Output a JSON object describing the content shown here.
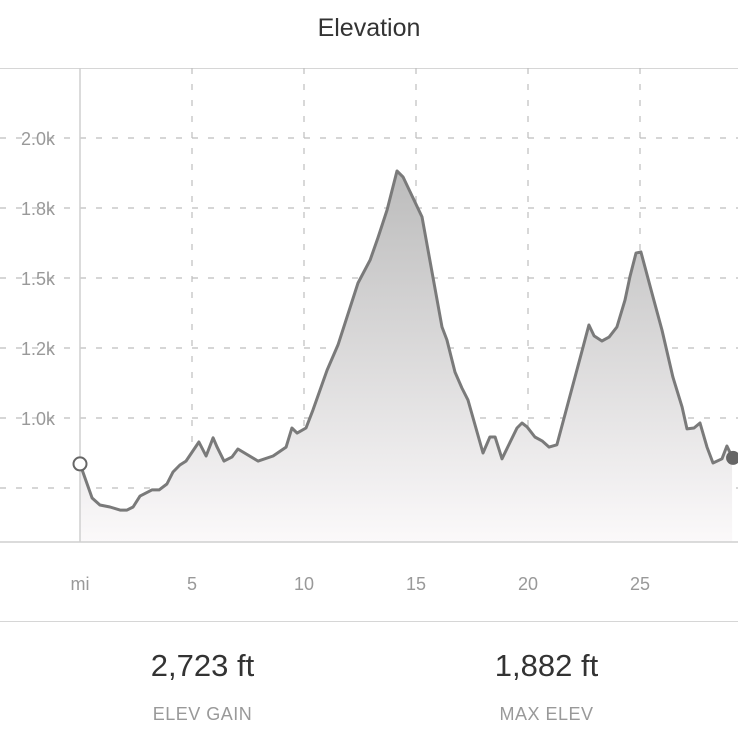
{
  "header": {
    "title": "Elevation"
  },
  "chart_data": {
    "type": "area",
    "title": "Elevation",
    "x_unit_label": "mi",
    "xlim": [
      0,
      29.4
    ],
    "ylim": [
      557,
      2250
    ],
    "x_ticks": [
      {
        "value": 5,
        "label": "5"
      },
      {
        "value": 10,
        "label": "10"
      },
      {
        "value": 15,
        "label": "15"
      },
      {
        "value": 20,
        "label": "20"
      },
      {
        "value": 25,
        "label": "25"
      }
    ],
    "y_ticks": [
      {
        "value": 750,
        "label": ""
      },
      {
        "value": 1000,
        "label": "1.0k"
      },
      {
        "value": 1250,
        "label": "1.2k"
      },
      {
        "value": 1500,
        "label": "1.5k"
      },
      {
        "value": 1750,
        "label": "1.8k"
      },
      {
        "value": 2000,
        "label": "2.0k"
      }
    ],
    "grid": true,
    "colors": {
      "line": "#7a7a7a",
      "fill_top": "#bcbcbc",
      "fill_bottom": "#fbf9fa",
      "grid": "#bdbdbd",
      "start_marker": "#666666",
      "end_marker": "#666666"
    },
    "x": [
      0,
      0.54,
      0.89,
      1.34,
      1.79,
      2.1,
      2.37,
      2.68,
      3.21,
      3.53,
      3.88,
      4.15,
      4.46,
      4.73,
      5.31,
      5.63,
      5.94,
      6.12,
      6.43,
      6.79,
      7.05,
      7.95,
      8.62,
      9.2,
      9.46,
      9.69,
      10.09,
      10.4,
      11.03,
      11.52,
      12.41,
      12.95,
      13.3,
      13.71,
      14.15,
      14.42,
      15.27,
      16.16,
      16.38,
      16.74,
      17.05,
      17.32,
      17.99,
      18.3,
      18.53,
      18.84,
      19.51,
      19.73,
      19.96,
      20.31,
      20.63,
      20.94,
      21.29,
      22.1,
      22.46,
      22.72,
      22.95,
      23.3,
      23.62,
      23.97,
      24.33,
      24.55,
      24.82,
      25.04,
      25.58,
      25.98,
      26.47,
      26.88,
      27.1,
      27.41,
      27.68,
      27.99,
      28.26,
      28.66,
      28.88,
      29.11
    ],
    "y": [
      836,
      714,
      689,
      682,
      671,
      671,
      682,
      721,
      743,
      743,
      764,
      807,
      832,
      846,
      914,
      864,
      929,
      896,
      846,
      861,
      889,
      846,
      864,
      896,
      964,
      946,
      964,
      1029,
      1171,
      1261,
      1482,
      1564,
      1643,
      1743,
      1882,
      1861,
      1718,
      1325,
      1279,
      1164,
      1107,
      1064,
      875,
      932,
      932,
      854,
      964,
      982,
      968,
      932,
      918,
      896,
      904,
      1146,
      1254,
      1332,
      1293,
      1275,
      1289,
      1325,
      1421,
      1504,
      1589,
      1593,
      1432,
      1314,
      1146,
      1039,
      961,
      964,
      982,
      896,
      839,
      854,
      900,
      861
    ]
  },
  "stats": [
    {
      "value": "2,723 ft",
      "label": "ELEV GAIN"
    },
    {
      "value": "1,882 ft",
      "label": "MAX ELEV"
    }
  ]
}
